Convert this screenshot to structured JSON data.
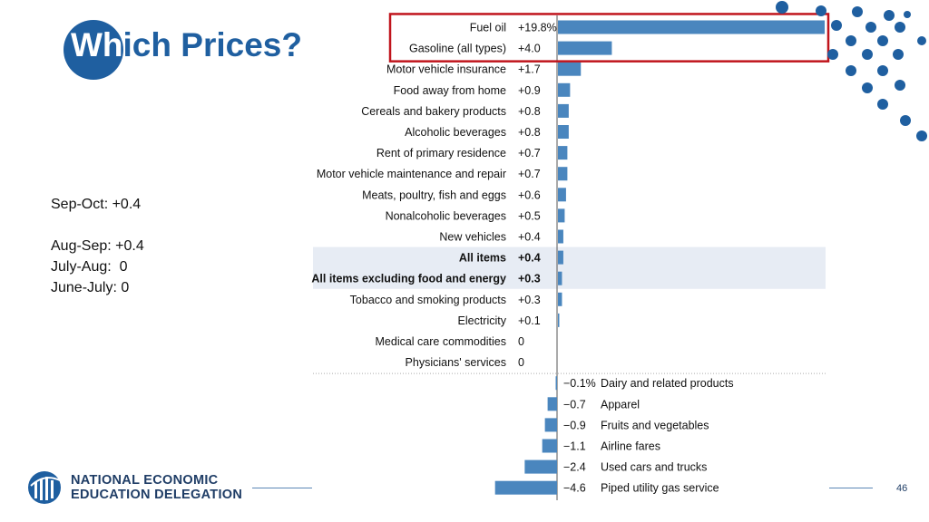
{
  "slide": {
    "title_prefix": "Wh",
    "title_rest": "ich Prices?",
    "notes": [
      "Sep-Oct: +0.4",
      "",
      "Aug-Sep: +0.4",
      "July-Aug:  0",
      "June-July: 0"
    ],
    "logo_line1": "NATIONAL ECONOMIC",
    "logo_line2": "EDUCATION DELEGATION",
    "page_number": "46"
  },
  "colors": {
    "bar": "#4a86be",
    "highlight_box": "#c0141c",
    "shaded_band": "#e7ecf4",
    "title": "#1f5fa0",
    "dots": "#1f5fa0"
  },
  "chart_data": {
    "type": "bar",
    "orientation": "horizontal",
    "title": "",
    "xlabel": "",
    "ylabel": "",
    "items": [
      {
        "category": "Fuel oil",
        "value": 19.8,
        "label": "+19.8%",
        "highlighted": true
      },
      {
        "category": "Gasoline (all types)",
        "value": 4.0,
        "label": "+4.0",
        "highlighted": true
      },
      {
        "category": "Motor vehicle insurance",
        "value": 1.7,
        "label": "+1.7"
      },
      {
        "category": "Food away from home",
        "value": 0.9,
        "label": "+0.9"
      },
      {
        "category": "Cereals and bakery products",
        "value": 0.8,
        "label": "+0.8"
      },
      {
        "category": "Alcoholic beverages",
        "value": 0.8,
        "label": "+0.8"
      },
      {
        "category": "Rent of primary residence",
        "value": 0.7,
        "label": "+0.7"
      },
      {
        "category": "Motor vehicle maintenance and repair",
        "value": 0.7,
        "label": "+0.7"
      },
      {
        "category": "Meats, poultry, fish and eggs",
        "value": 0.6,
        "label": "+0.6"
      },
      {
        "category": "Nonalcoholic beverages",
        "value": 0.5,
        "label": "+0.5"
      },
      {
        "category": "New vehicles",
        "value": 0.4,
        "label": "+0.4"
      },
      {
        "category": "All items",
        "value": 0.4,
        "label": "+0.4",
        "bold": true,
        "shaded": true
      },
      {
        "category": "All items excluding food and energy",
        "value": 0.3,
        "label": "+0.3",
        "bold": true,
        "shaded": true
      },
      {
        "category": "Tobacco and smoking products",
        "value": 0.3,
        "label": "+0.3"
      },
      {
        "category": "Electricity",
        "value": 0.1,
        "label": "+0.1"
      },
      {
        "category": "Medical care commodities",
        "value": 0,
        "label": "0"
      },
      {
        "category": "Physicians' services",
        "value": 0,
        "label": "0"
      },
      {
        "category": "Dairy and related products",
        "value": -0.1,
        "label": "−0.1%"
      },
      {
        "category": "Apparel",
        "value": -0.7,
        "label": "−0.7"
      },
      {
        "category": "Fruits and vegetables",
        "value": -0.9,
        "label": "−0.9"
      },
      {
        "category": "Airline fares",
        "value": -1.1,
        "label": "−1.1"
      },
      {
        "category": "Used cars and trucks",
        "value": -2.4,
        "label": "−2.4"
      },
      {
        "category": "Piped utility gas service",
        "value": -4.6,
        "label": "−4.6"
      }
    ]
  }
}
